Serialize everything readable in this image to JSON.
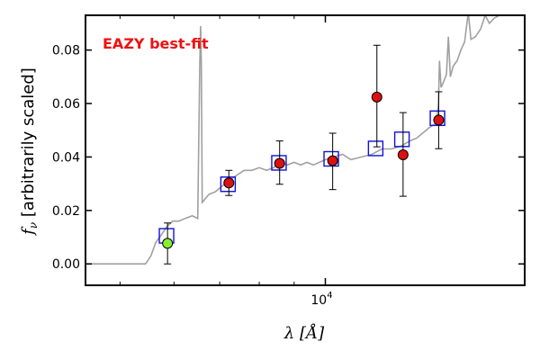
{
  "chart_data": {
    "type": "scatter",
    "title": "",
    "annotation": {
      "text": "EAZY best-fit",
      "color": "#ee1111"
    },
    "xlabel": {
      "prefix": "λ [",
      "symbol": "Å",
      "suffix": "]"
    },
    "ylabel": {
      "symbol": "f",
      "subscript": "ν",
      "text": " [arbitrarily scaled]"
    },
    "x_scale": "log",
    "xlim": [
      4450,
      19600
    ],
    "ylim": [
      -0.008,
      0.093
    ],
    "x_ticks": [
      {
        "value": 10000,
        "base": "10",
        "exp": "4"
      }
    ],
    "x_minor_ticks": [
      5000,
      6000,
      7000,
      8000,
      9000
    ],
    "y_ticks": [
      {
        "value": 0.0,
        "label": "0.00"
      },
      {
        "value": 0.02,
        "label": "0.02"
      },
      {
        "value": 0.04,
        "label": "0.04"
      },
      {
        "value": 0.06,
        "label": "0.06"
      },
      {
        "value": 0.08,
        "label": "0.08"
      }
    ],
    "grid": false,
    "colors": {
      "template": "#a0a0a0",
      "model_box": "#1010dd",
      "observed_fill": "#dd1111",
      "observed_low_fill": "#88ee33",
      "marker_edge": "#000000",
      "error_bar": "#000000"
    },
    "template_sed": {
      "name": "",
      "points": [
        [
          4450,
          0.0
        ],
        [
          5450,
          0.0
        ],
        [
          5550,
          0.003
        ],
        [
          5640,
          0.008
        ],
        [
          5750,
          0.011
        ],
        [
          5860,
          0.014
        ],
        [
          5970,
          0.016
        ],
        [
          6100,
          0.016
        ],
        [
          6230,
          0.017
        ],
        [
          6380,
          0.018
        ],
        [
          6500,
          0.017
        ],
        [
          6545,
          0.075
        ],
        [
          6563,
          0.089
        ],
        [
          6580,
          0.075
        ],
        [
          6600,
          0.023
        ],
        [
          6750,
          0.026
        ],
        [
          6900,
          0.027
        ],
        [
          7050,
          0.029
        ],
        [
          7200,
          0.031
        ],
        [
          7400,
          0.033
        ],
        [
          7600,
          0.035
        ],
        [
          7800,
          0.035
        ],
        [
          8000,
          0.036
        ],
        [
          8200,
          0.035
        ],
        [
          8400,
          0.036
        ],
        [
          8600,
          0.038
        ],
        [
          8800,
          0.037
        ],
        [
          9000,
          0.038
        ],
        [
          9200,
          0.037
        ],
        [
          9400,
          0.038
        ],
        [
          9600,
          0.037
        ],
        [
          9800,
          0.038
        ],
        [
          10000,
          0.039
        ],
        [
          10300,
          0.04
        ],
        [
          10600,
          0.041
        ],
        [
          10900,
          0.039
        ],
        [
          11300,
          0.04
        ],
        [
          11700,
          0.041
        ],
        [
          12100,
          0.043
        ],
        [
          12500,
          0.043
        ],
        [
          12900,
          0.044
        ],
        [
          13300,
          0.046
        ],
        [
          13600,
          0.047
        ],
        [
          13900,
          0.049
        ],
        [
          14200,
          0.051
        ],
        [
          14400,
          0.052
        ],
        [
          14550,
          0.053
        ],
        [
          14650,
          0.06
        ],
        [
          14700,
          0.076
        ],
        [
          14780,
          0.066
        ],
        [
          14900,
          0.068
        ],
        [
          15050,
          0.071
        ],
        [
          15150,
          0.085
        ],
        [
          15250,
          0.07
        ],
        [
          15400,
          0.074
        ],
        [
          15600,
          0.076
        ],
        [
          15800,
          0.08
        ],
        [
          16000,
          0.083
        ],
        [
          16200,
          0.094
        ],
        [
          16350,
          0.084
        ],
        [
          16600,
          0.085
        ],
        [
          16900,
          0.088
        ],
        [
          17150,
          0.093
        ],
        [
          17400,
          0.09
        ],
        [
          17700,
          0.092
        ],
        [
          18000,
          0.093
        ],
        [
          18300,
          0.094
        ],
        [
          19600,
          0.095
        ]
      ]
    },
    "model_photometry": {
      "name": "",
      "points": [
        {
          "x": 5850,
          "y": 0.0105
        },
        {
          "x": 7200,
          "y": 0.0298
        },
        {
          "x": 8550,
          "y": 0.0378
        },
        {
          "x": 10200,
          "y": 0.0393
        },
        {
          "x": 11850,
          "y": 0.0432
        },
        {
          "x": 12950,
          "y": 0.0466
        },
        {
          "x": 14600,
          "y": 0.0545
        }
      ]
    },
    "observed_photometry": {
      "name": "",
      "points": [
        {
          "x": 5870,
          "y": 0.0077,
          "err_low": 0.0077,
          "err_high": 0.0076,
          "low_sn": true
        },
        {
          "x": 7220,
          "y": 0.0303,
          "err_low": 0.0047,
          "err_high": 0.0047,
          "low_sn": false
        },
        {
          "x": 8570,
          "y": 0.0376,
          "err_low": 0.0078,
          "err_high": 0.0084,
          "low_sn": false
        },
        {
          "x": 10250,
          "y": 0.0386,
          "err_low": 0.0108,
          "err_high": 0.0103,
          "low_sn": false
        },
        {
          "x": 11900,
          "y": 0.0624,
          "err_low": 0.0186,
          "err_high": 0.0194,
          "low_sn": false
        },
        {
          "x": 13000,
          "y": 0.0408,
          "err_low": 0.0155,
          "err_high": 0.0158,
          "low_sn": false
        },
        {
          "x": 14660,
          "y": 0.0538,
          "err_low": 0.0107,
          "err_high": 0.0106,
          "low_sn": false
        }
      ]
    }
  }
}
